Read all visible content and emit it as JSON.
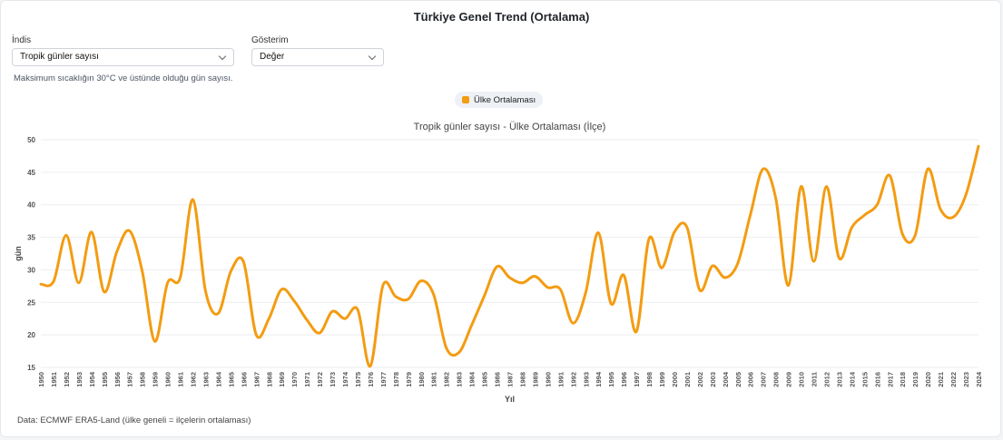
{
  "header": {
    "title": "Türkiye Genel Trend (Ortalama)"
  },
  "controls": {
    "index_label": "İndis",
    "index_value": "Tropik günler sayısı",
    "display_label": "Gösterim",
    "display_value": "Değer"
  },
  "description": "Maksimum sıcaklığın 30°C ve üstünde olduğu gün sayısı.",
  "legend": {
    "label": "Ülke Ortalaması",
    "color": "#f39c12"
  },
  "footer": "Data: ECMWF ERA5-Land (ülke geneli = ilçelerin ortalaması)",
  "chart_data": {
    "type": "line",
    "title": "Tropik günler sayısı - Ülke Ortalaması (İlçe)",
    "xlabel": "Yıl",
    "ylabel": "gün",
    "ylim": [
      15,
      50
    ],
    "yticks": [
      15,
      20,
      25,
      30,
      35,
      40,
      45,
      50
    ],
    "grid": true,
    "x": [
      1950,
      1951,
      1952,
      1953,
      1954,
      1955,
      1956,
      1957,
      1958,
      1959,
      1960,
      1961,
      1962,
      1963,
      1964,
      1965,
      1966,
      1967,
      1968,
      1969,
      1970,
      1971,
      1972,
      1973,
      1974,
      1975,
      1976,
      1977,
      1978,
      1979,
      1980,
      1981,
      1982,
      1983,
      1984,
      1985,
      1986,
      1987,
      1988,
      1989,
      1990,
      1991,
      1992,
      1993,
      1994,
      1995,
      1996,
      1997,
      1998,
      1999,
      2000,
      2001,
      2002,
      2003,
      2004,
      2005,
      2006,
      2007,
      2008,
      2009,
      2010,
      2011,
      2012,
      2013,
      2014,
      2015,
      2016,
      2017,
      2018,
      2019,
      2020,
      2021,
      2022,
      2023,
      2024
    ],
    "series": [
      {
        "name": "Ülke Ortalaması",
        "color": "#f39c12",
        "values": [
          27.8,
          28.2,
          35.3,
          28.0,
          35.8,
          26.6,
          32.8,
          36.0,
          29.8,
          19.0,
          28.0,
          28.8,
          40.8,
          26.7,
          23.3,
          29.8,
          31.2,
          20.0,
          22.5,
          27.0,
          25.2,
          22.3,
          20.3,
          23.6,
          22.5,
          23.9,
          15.2,
          27.6,
          25.9,
          25.5,
          28.3,
          26.2,
          18.0,
          17.3,
          21.5,
          26.0,
          30.5,
          28.8,
          28.0,
          29.0,
          27.3,
          27.0,
          21.8,
          26.5,
          35.7,
          24.8,
          29.2,
          20.5,
          34.8,
          30.3,
          35.8,
          36.5,
          26.9,
          30.6,
          28.8,
          31.0,
          38.5,
          45.5,
          41.0,
          27.6,
          42.8,
          31.3,
          42.8,
          31.8,
          36.5,
          38.4,
          40.0,
          44.5,
          35.5,
          35.3,
          45.5,
          39.3,
          38.1,
          41.5,
          49.0
        ]
      }
    ]
  }
}
